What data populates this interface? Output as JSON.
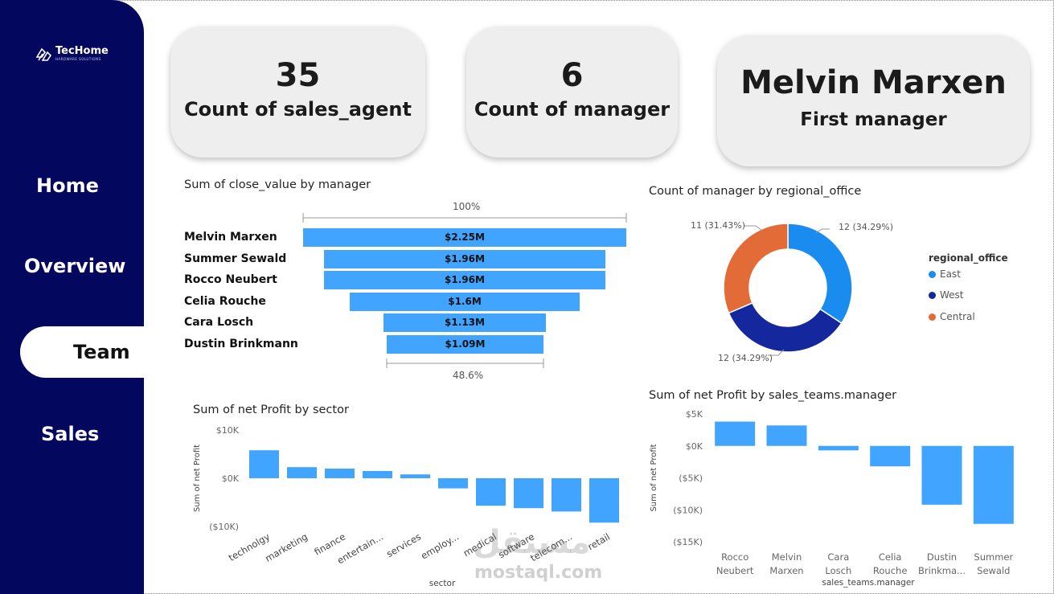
{
  "brand": {
    "name": "TecHome",
    "tagline": "HARDWARE SOLUTIONS"
  },
  "nav": {
    "home": "Home",
    "overview": "Overview",
    "team": "Team",
    "sales": "Sales"
  },
  "cards": [
    {
      "value": "35",
      "label": "Count of sales_agent"
    },
    {
      "value": "6",
      "label": "Count of manager"
    },
    {
      "value": "Melvin Marxen",
      "label": "First manager"
    }
  ],
  "funnel": {
    "title": "Sum of close_value by manager",
    "top_pct": "100%",
    "bottom_pct": "48.6%",
    "rows": [
      {
        "name": "Melvin Marxen",
        "value": 2.25,
        "label": "$2.25M"
      },
      {
        "name": "Summer Sewald",
        "value": 1.96,
        "label": "$1.96M"
      },
      {
        "name": "Rocco Neubert",
        "value": 1.96,
        "label": "$1.96M"
      },
      {
        "name": "Celia Rouche",
        "value": 1.6,
        "label": "$1.6M"
      },
      {
        "name": "Cara Losch",
        "value": 1.13,
        "label": "$1.13M"
      },
      {
        "name": "Dustin Brinkmann",
        "value": 1.09,
        "label": "$1.09M"
      }
    ]
  },
  "donut": {
    "title": "Count of manager by regional_office",
    "legend_title": "regional_office",
    "labels": {
      "east": "12 (34.29%)",
      "west": "12 (34.29%)",
      "central": "11 (31.43%)"
    },
    "legend": [
      "East",
      "West",
      "Central"
    ]
  },
  "colors": {
    "bar": "#41a5ff",
    "east": "#1a8cf0",
    "west": "#14279c",
    "central": "#e26b37",
    "sidebar": "#04075e"
  },
  "chart_data": [
    {
      "type": "funnel",
      "title": "Sum of close_value by manager",
      "categories": [
        "Melvin Marxen",
        "Summer Sewald",
        "Rocco Neubert",
        "Celia Rouche",
        "Cara Losch",
        "Dustin Brinkmann"
      ],
      "values": [
        2.25,
        1.96,
        1.96,
        1.6,
        1.13,
        1.09
      ],
      "unit": "$M"
    },
    {
      "type": "pie",
      "title": "Count of manager by regional_office",
      "categories": [
        "East",
        "West",
        "Central"
      ],
      "values": [
        12,
        12,
        11
      ],
      "percents": [
        34.29,
        34.29,
        31.43
      ]
    },
    {
      "type": "bar",
      "title": "Sum of net Profit by sector",
      "xlabel": "sector",
      "ylabel": "Sum of net Profit",
      "categories": [
        "technolgy",
        "marketing",
        "finance",
        "entertain...",
        "services",
        "employ...",
        "medical",
        "software",
        "telecom...",
        "retail"
      ],
      "values": [
        5800,
        2300,
        2000,
        1500,
        800,
        -2100,
        -5700,
        -6200,
        -6900,
        -9200
      ],
      "ylim": [
        -10000,
        10000
      ],
      "ticks": [
        "$10K",
        "$0K",
        "($10K)"
      ]
    },
    {
      "type": "bar",
      "title": "Sum of net Profit by sales_teams.manager",
      "xlabel": "sales_teams.manager",
      "ylabel": "Sum of net Profit",
      "categories": [
        [
          "Rocco",
          "Neubert"
        ],
        [
          "Melvin",
          "Marxen"
        ],
        [
          "Cara",
          "Losch"
        ],
        [
          "Celia",
          "Rouche"
        ],
        [
          "Dustin",
          "Brinkma..."
        ],
        [
          "Summer",
          "Sewald"
        ]
      ],
      "values": [
        3800,
        3200,
        -700,
        -3200,
        -9200,
        -12200
      ],
      "ylim": [
        -15000,
        5000
      ],
      "ticks": [
        "$5K",
        "$0K",
        "($5K)",
        "($10K)",
        "($15K)"
      ]
    }
  ],
  "watermark": {
    "arabic": "مستقل",
    "latin": "mostaql.com"
  }
}
